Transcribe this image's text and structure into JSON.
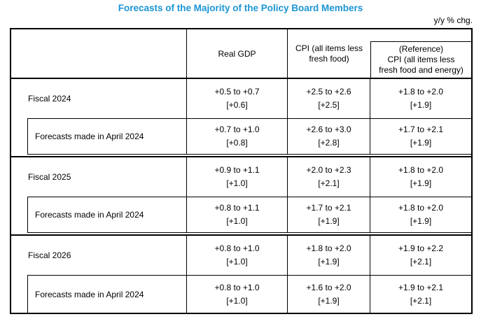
{
  "title": "Forecasts of the Majority of the Policy Board Members",
  "unit_note": "y/y % chg.",
  "table": {
    "header": {
      "real_gdp": "Real GDP",
      "cpi": "CPI (all items less\nfresh food)",
      "reference": "(Reference)\nCPI (all items less\nfresh food and energy)"
    },
    "blocks": [
      {
        "row_label": "Fiscal 2024",
        "row_cells": [
          {
            "range": "+0.5 to +0.7",
            "median": "[+0.6]"
          },
          {
            "range": "+2.5 to +2.6",
            "median": "[+2.5]"
          },
          {
            "range": "+1.8 to +2.0",
            "median": "[+1.9]"
          }
        ],
        "sub_label": "Forecasts made in April 2024",
        "sub_cells": [
          {
            "range": "+0.7 to +1.0",
            "median": "[+0.8]"
          },
          {
            "range": "+2.6 to +3.0",
            "median": "[+2.8]"
          },
          {
            "range": "+1.7 to +2.1",
            "median": "[+1.9]"
          }
        ]
      },
      {
        "row_label": "Fiscal 2025",
        "row_cells": [
          {
            "range": "+0.9 to +1.1",
            "median": "[+1.0]"
          },
          {
            "range": "+2.0 to +2.3",
            "median": "[+2.1]"
          },
          {
            "range": "+1.8 to +2.0",
            "median": "[+1.9]"
          }
        ],
        "sub_label": "Forecasts made in April 2024",
        "sub_cells": [
          {
            "range": "+0.8 to +1.1",
            "median": "[+1.0]"
          },
          {
            "range": "+1.7 to +2.1",
            "median": "[+1.9]"
          },
          {
            "range": "+1.8 to +2.0",
            "median": "[+1.9]"
          }
        ]
      },
      {
        "row_label": "Fiscal 2026",
        "row_cells": [
          {
            "range": "+0.8 to +1.0",
            "median": "[+1.0]"
          },
          {
            "range": "+1.8 to +2.0",
            "median": "[+1.9]"
          },
          {
            "range": "+1.9 to +2.2",
            "median": "[+2.1]"
          }
        ],
        "sub_label": "Forecasts made in April 2024",
        "sub_cells": [
          {
            "range": "+0.8 to +1.0",
            "median": "[+1.0]"
          },
          {
            "range": "+1.6 to +2.0",
            "median": "[+1.9]"
          },
          {
            "range": "+1.9 to +2.1",
            "median": "[+2.1]"
          }
        ]
      }
    ]
  }
}
